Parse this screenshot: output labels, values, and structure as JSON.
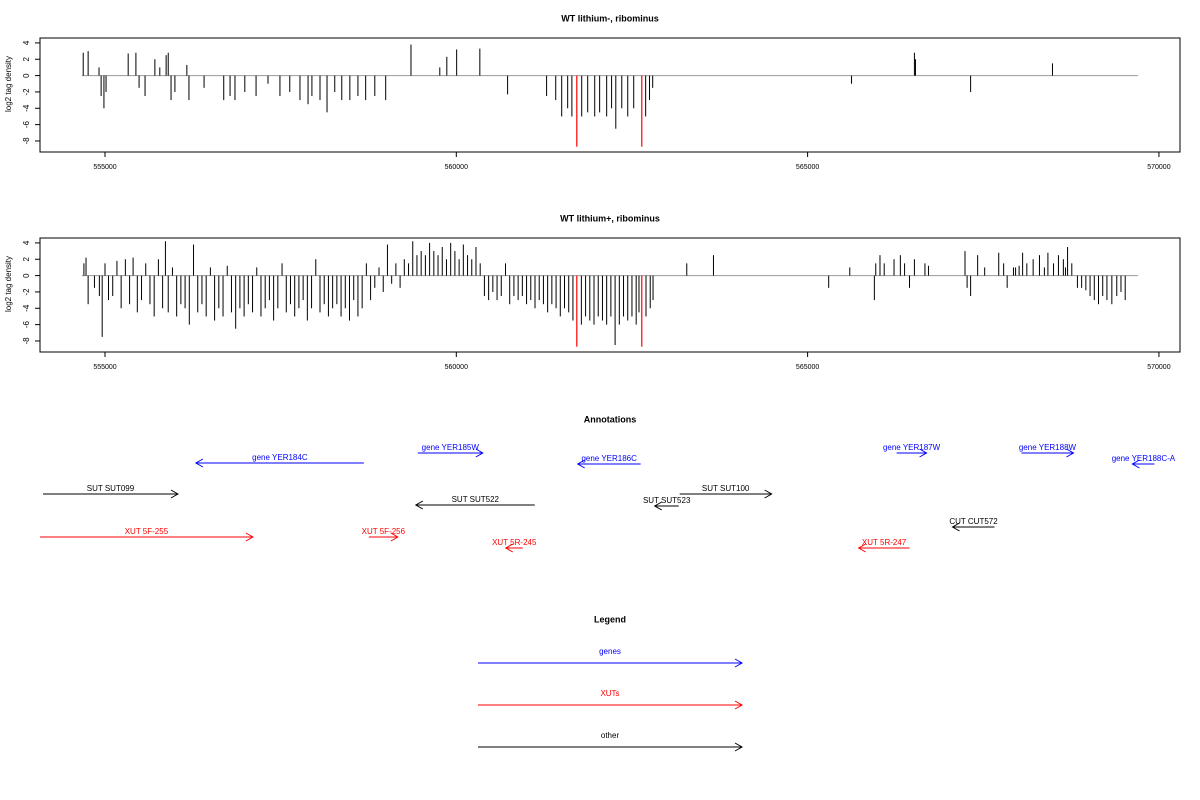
{
  "chart_data": [
    {
      "type": "spike",
      "title": "WT lithium-, ribominus",
      "ylabel": "log2 tag density",
      "xlim": [
        554075,
        570300
      ],
      "ylim": [
        -9.35,
        4.6
      ],
      "xticks": [
        555000,
        560000,
        565000,
        570000
      ],
      "yticks": [
        4,
        2,
        0,
        -2,
        -4,
        -6,
        -8
      ],
      "hline_range": [
        554670,
        569700
      ],
      "baseline_color": "#999999",
      "color": "#000000",
      "x": [
        554690,
        554760,
        554915,
        554945,
        554985,
        555015,
        555330,
        555440,
        555485,
        555570,
        555710,
        555780,
        555870,
        555900,
        555940,
        555995,
        556165,
        556195,
        556410,
        556690,
        556780,
        556850,
        556990,
        557150,
        557320,
        557490,
        557630,
        557775,
        557890,
        557945,
        558060,
        558160,
        558270,
        558370,
        558485,
        558600,
        558710,
        558840,
        558995,
        559355,
        559765,
        559865,
        560005,
        560335,
        560730,
        561285,
        561415,
        561500,
        561585,
        561645,
        561785,
        561870,
        561970,
        562040,
        562140,
        562210,
        562270,
        562355,
        562440,
        562525,
        562695,
        562750,
        562795,
        565625,
        566520,
        566535,
        567320,
        568485
      ],
      "values": [
        2.8,
        3,
        1,
        -2.5,
        -4,
        -2,
        2.7,
        2.8,
        -1.5,
        -2.5,
        2,
        1,
        2.5,
        2.8,
        -3,
        -2,
        1.3,
        -3,
        -1.5,
        -3,
        -2.5,
        -3,
        -2,
        -2.5,
        -1,
        -2.5,
        -2,
        -3,
        -3.5,
        -2.5,
        -3,
        -4.5,
        -2,
        -3,
        -3,
        -2.5,
        -3,
        -2.5,
        -3,
        3.8,
        1,
        2.3,
        3.2,
        3.3,
        -2.3,
        -2.5,
        -3,
        -5,
        -4,
        -5,
        -5,
        -4.5,
        -5,
        -4.5,
        -5,
        -4,
        -6.5,
        -4,
        -5,
        -4,
        -5,
        -3,
        -1.5,
        -1,
        2.8,
        2,
        -2,
        1.5
      ],
      "highlight": {
        "color": "#ff0000",
        "x": [
          561715,
          562640
        ],
        "values": [
          -8.7,
          -8.7
        ]
      }
    },
    {
      "type": "spike",
      "title": "WT lithium+, ribominus",
      "ylabel": "log2 tag density",
      "xlim": [
        554075,
        570300
      ],
      "ylim": [
        -9.35,
        4.6
      ],
      "xticks": [
        555000,
        560000,
        565000,
        570000
      ],
      "yticks": [
        4,
        2,
        0,
        -2,
        -4,
        -6,
        -8
      ],
      "hline_range": [
        554670,
        569700
      ],
      "baseline_color": "#999999",
      "color": "#000000",
      "x": [
        554700,
        554730,
        554760,
        554850,
        554920,
        554960,
        555000,
        555050,
        555110,
        555170,
        555230,
        555290,
        555350,
        555400,
        555460,
        555520,
        555580,
        555640,
        555700,
        555760,
        555820,
        555860,
        555900,
        555960,
        556020,
        556080,
        556140,
        556200,
        556260,
        556320,
        556380,
        556440,
        556500,
        556560,
        556620,
        556680,
        556740,
        556800,
        556860,
        556920,
        556980,
        557040,
        557100,
        557160,
        557220,
        557280,
        557340,
        557400,
        557460,
        557520,
        557580,
        557640,
        557700,
        557760,
        557820,
        557880,
        557940,
        558000,
        558060,
        558120,
        558180,
        558240,
        558300,
        558360,
        558420,
        558480,
        558540,
        558600,
        558660,
        558720,
        558780,
        558840,
        558900,
        558960,
        559020,
        559080,
        559140,
        559200,
        559260,
        559320,
        559380,
        559440,
        559500,
        559560,
        559620,
        559680,
        559740,
        559800,
        559860,
        559920,
        559980,
        560040,
        560100,
        560160,
        560220,
        560280,
        560340,
        560400,
        560460,
        560520,
        560580,
        560640,
        560700,
        560760,
        560820,
        560880,
        560940,
        561000,
        561060,
        561120,
        561180,
        561240,
        561300,
        561360,
        561420,
        561480,
        561540,
        561600,
        561660,
        561780,
        561840,
        561900,
        561960,
        562020,
        562080,
        562140,
        562200,
        562260,
        562320,
        562380,
        562440,
        562500,
        562560,
        562600,
        562700,
        562760,
        562800,
        563280,
        563660,
        565300,
        565600,
        565950,
        565970,
        566030,
        566090,
        566230,
        566320,
        566380,
        566450,
        566520,
        566670,
        566720,
        567240,
        567270,
        567320,
        567420,
        567520,
        567720,
        567790,
        567840,
        567930,
        567960,
        568010,
        568060,
        568120,
        568210,
        568300,
        568370,
        568420,
        568500,
        568570,
        568640,
        568670,
        568700,
        568760,
        568840,
        568900,
        568960,
        569020,
        569080,
        569140,
        569200,
        569260,
        569330,
        569400,
        569460,
        569520
      ],
      "values": [
        1.5,
        2.2,
        -3.5,
        -1.5,
        -2.5,
        -7.5,
        1.5,
        -3,
        -2.5,
        1.8,
        -4,
        2,
        -3.5,
        2.2,
        -4.5,
        -3,
        1.5,
        -3.5,
        -5,
        2,
        -4,
        4.2,
        -4.5,
        1,
        -5,
        -3.5,
        -4,
        -6,
        3.8,
        -4.5,
        -3.5,
        -5,
        1,
        -5.5,
        -4,
        -5,
        1.2,
        -4.5,
        -6.5,
        -4,
        -5,
        -3.5,
        -4.5,
        1,
        -5,
        -4,
        -3,
        -5.5,
        -4,
        1.5,
        -4.5,
        -3.5,
        -5,
        -4,
        -3,
        -5.5,
        -4,
        2,
        -4.5,
        -3.5,
        -5,
        -4,
        -3.5,
        -5,
        -4,
        -5.5,
        -3,
        -5,
        -4,
        1.5,
        -3,
        -1.5,
        1,
        -2,
        3.8,
        -1,
        1.5,
        -1.5,
        2,
        1.5,
        4.2,
        2.5,
        3,
        2.5,
        4,
        3,
        2.5,
        3.5,
        2,
        4,
        3,
        2,
        3.8,
        2.5,
        2,
        3.5,
        1.5,
        -2.5,
        -3,
        -2,
        -3,
        -2.5,
        1.5,
        -3.5,
        -2.5,
        -3,
        -2.5,
        -3.5,
        -3,
        -4,
        -3,
        -3.5,
        -4.5,
        -3.5,
        -4,
        -5,
        -4,
        -4.5,
        -5.5,
        -6,
        -5,
        -5.5,
        -6,
        -5,
        -5.5,
        -6,
        -5,
        -8.5,
        -6,
        -5,
        -5.5,
        -5,
        -6,
        -4.5,
        -5,
        -4,
        -3,
        1.5,
        2.5,
        -1.5,
        1,
        -3,
        1.5,
        2.5,
        1.5,
        2,
        2.5,
        1.5,
        -1.5,
        2,
        1.5,
        1.2,
        3,
        -1.5,
        -2.5,
        2.5,
        1,
        2.8,
        1.5,
        -1.5,
        1,
        1,
        1.2,
        2.8,
        1.5,
        2,
        2.5,
        1,
        2.8,
        1.5,
        2.5,
        2,
        1,
        3.5,
        1.5,
        -1.5,
        -1.5,
        -1.8,
        -2.5,
        -3,
        -3.5,
        -2.5,
        -3,
        -3.5,
        -2.5,
        -2,
        -3
      ],
      "highlight": {
        "color": "#ff0000",
        "x": [
          561715,
          562640
        ],
        "values": [
          -8.7,
          -8.7
        ]
      }
    }
  ],
  "annotations": {
    "title": "Annotations",
    "xlim": [
      554075,
      570300
    ],
    "items": [
      {
        "label": "gene YER184C",
        "color": "#0000ff",
        "start": 558684,
        "end": 556294
      },
      {
        "label": "gene YER185W",
        "color": "#0000ff",
        "start": 559452,
        "end": 560377
      },
      {
        "label": "gene YER186C",
        "color": "#0000ff",
        "start": 562624,
        "end": 561728
      },
      {
        "label": "gene YER187W",
        "color": "#0000ff",
        "start": 566266,
        "end": 566693
      },
      {
        "label": "gene YER188W",
        "color": "#0000ff",
        "start": 568044,
        "end": 568784
      },
      {
        "label": "gene YER188C-A",
        "color": "#0000ff",
        "start": 569936,
        "end": 569623
      },
      {
        "label": "SUT SUT099",
        "color": "#000000",
        "start": 554118,
        "end": 556038
      },
      {
        "label": "SUT SUT522",
        "color": "#000000",
        "start": 561117,
        "end": 559424
      },
      {
        "label": "SUT SUT523",
        "color": "#000000",
        "start": 563165,
        "end": 562824
      },
      {
        "label": "SUT SUT100",
        "color": "#000000",
        "start": 563179,
        "end": 564488
      },
      {
        "label": "CUT CUT572",
        "color": "#000000",
        "start": 567660,
        "end": 567063
      },
      {
        "label": "XUT 5F-255",
        "color": "#ff0000",
        "start": 554075,
        "end": 557105
      },
      {
        "label": "XUT 5F-256",
        "color": "#ff0000",
        "start": 558755,
        "end": 559168
      },
      {
        "label": "XUT 5R-245",
        "color": "#ff0000",
        "start": 560946,
        "end": 560704
      },
      {
        "label": "XUT 5R-247",
        "color": "#ff0000",
        "start": 566451,
        "end": 565726
      }
    ]
  },
  "legend": {
    "title": "Legend",
    "items": [
      {
        "label": "genes",
        "color": "#0000ff"
      },
      {
        "label": "XUTs",
        "color": "#ff0000"
      },
      {
        "label": "other",
        "color": "#000000"
      }
    ]
  }
}
